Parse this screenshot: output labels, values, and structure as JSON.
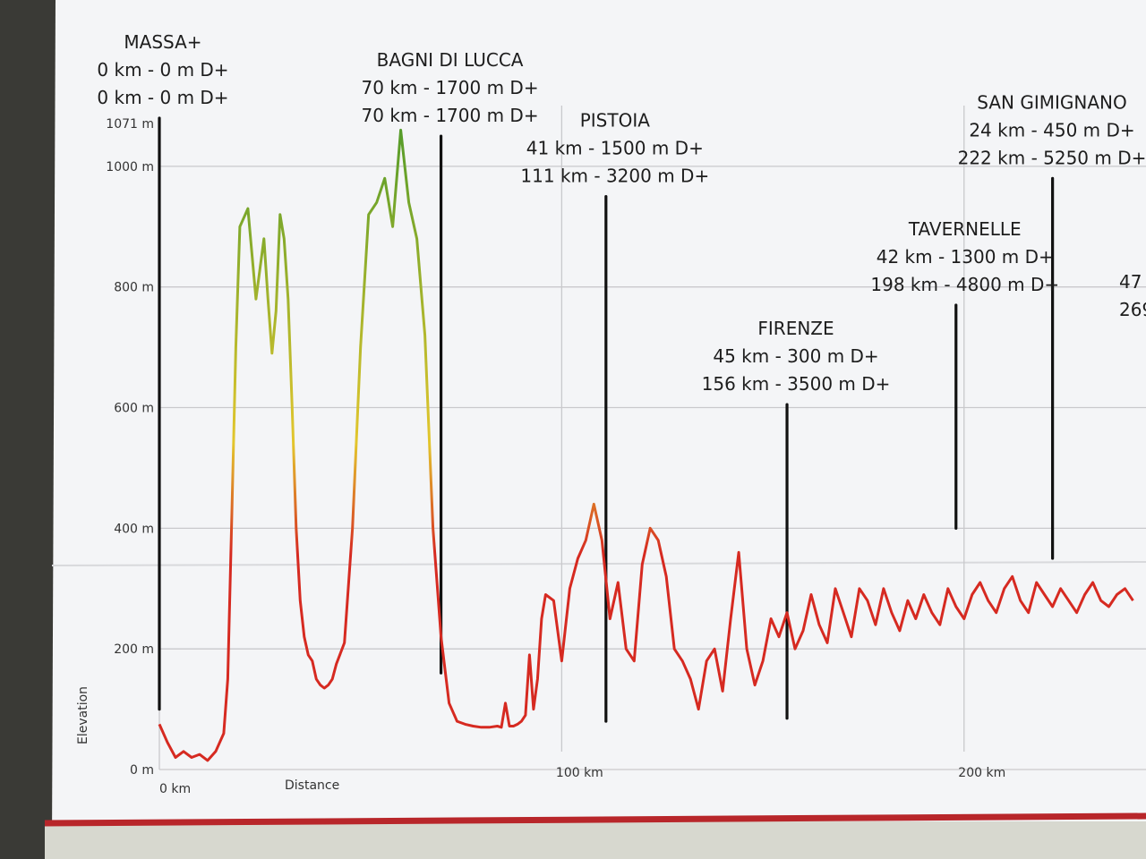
{
  "chart_data": {
    "type": "line",
    "title": "",
    "xlabel": "Distance",
    "ylabel": "Elevation",
    "xlim": [
      0,
      243
    ],
    "ylim": [
      0,
      1071
    ],
    "y_ticks": [
      {
        "value": 0,
        "label": "0 m"
      },
      {
        "value": 200,
        "label": "200 m"
      },
      {
        "value": 400,
        "label": "400 m"
      },
      {
        "value": 600,
        "label": "600 m"
      },
      {
        "value": 800,
        "label": "800 m"
      },
      {
        "value": 1000,
        "label": "1000 m"
      },
      {
        "value": 1071,
        "label": "1071 m"
      }
    ],
    "x_ticks": [
      {
        "value": 0,
        "label": "0 km"
      },
      {
        "value": 100,
        "label": "100 km"
      },
      {
        "value": 200,
        "label": "200 km"
      }
    ],
    "grid": true,
    "color_scale": {
      "low": "#d62a21",
      "mid": "#e3c62d",
      "high": "#4f9a2a"
    },
    "series": [
      {
        "x": [
          0,
          2,
          4,
          6,
          8,
          10,
          12,
          14,
          16,
          17,
          18,
          19,
          20,
          22,
          24,
          26,
          27,
          28,
          29,
          30,
          31,
          32,
          33,
          34,
          35,
          36,
          37,
          38,
          39,
          40,
          41,
          42,
          43,
          44,
          46,
          48,
          50,
          52,
          54,
          56,
          58,
          60,
          62,
          64,
          66,
          68,
          70,
          72,
          74,
          76,
          78,
          80,
          82,
          84,
          85,
          86,
          87,
          88,
          89,
          90,
          91,
          92,
          93,
          94,
          95,
          96,
          98,
          100,
          102,
          104,
          106,
          108,
          110,
          112,
          114,
          116,
          118,
          120,
          122,
          124,
          126,
          128,
          130,
          132,
          134,
          136,
          138,
          140,
          142,
          144,
          146,
          148,
          150,
          152,
          154,
          156,
          158,
          160,
          162,
          164,
          166,
          168,
          170,
          172,
          174,
          176,
          178,
          180,
          182,
          184,
          186,
          188,
          190,
          192,
          194,
          196,
          198,
          200,
          202,
          204,
          206,
          208,
          210,
          212,
          214,
          216,
          218,
          220,
          222,
          224,
          226,
          228,
          230,
          232,
          234,
          236,
          238,
          240,
          242
        ],
        "y": [
          75,
          45,
          20,
          30,
          20,
          25,
          15,
          30,
          60,
          150,
          420,
          700,
          900,
          930,
          780,
          880,
          780,
          690,
          760,
          920,
          880,
          780,
          600,
          400,
          280,
          220,
          190,
          180,
          150,
          140,
          135,
          140,
          150,
          175,
          210,
          400,
          700,
          920,
          940,
          980,
          900,
          1060,
          940,
          880,
          720,
          400,
          220,
          110,
          80,
          75,
          72,
          70,
          70,
          72,
          70,
          110,
          72,
          72,
          75,
          80,
          90,
          190,
          100,
          150,
          250,
          290,
          280,
          180,
          300,
          350,
          380,
          440,
          380,
          250,
          310,
          200,
          180,
          340,
          400,
          380,
          320,
          200,
          180,
          150,
          100,
          180,
          200,
          130,
          250,
          360,
          200,
          140,
          180,
          250,
          220,
          260,
          200,
          230,
          290,
          240,
          210,
          300,
          260,
          220,
          300,
          280,
          240,
          300,
          260,
          230,
          280,
          250,
          290,
          260,
          240,
          300,
          270,
          250,
          290,
          310,
          280,
          260,
          300,
          320,
          280,
          260,
          310,
          290,
          270,
          300,
          280,
          260,
          290,
          310,
          280,
          270,
          290,
          300,
          280
        ]
      }
    ],
    "annotations": [
      {
        "name": "MASSA+",
        "x": 0,
        "line_top": 1080,
        "line_bottom": 100,
        "leg": "0 km - 0 m D+",
        "total": "0 km - 0 m D+"
      },
      {
        "name": "BAGNI DI LUCCA",
        "x": 70,
        "line_top": 1050,
        "line_bottom": 160,
        "leg": "70 km - 1700 m D+",
        "total": "70 km - 1700 m D+"
      },
      {
        "name": "PISTOIA",
        "x": 111,
        "line_top": 950,
        "line_bottom": 80,
        "leg": "41 km - 1500 m D+",
        "total": "111 km - 3200 m D+"
      },
      {
        "name": "FIRENZE",
        "x": 156,
        "line_top": 605,
        "line_bottom": 85,
        "leg": "45 km - 300 m D+",
        "total": "156 km - 3500 m D+"
      },
      {
        "name": "TAVERNELLE",
        "x": 198,
        "line_top": 770,
        "line_bottom": 400,
        "leg": "42 km - 1300 m D+",
        "total": "198 km - 4800 m D+"
      },
      {
        "name": "SAN GIMIGNANO",
        "x": 222,
        "line_top": 980,
        "line_bottom": 350,
        "leg": "24 km - 450 m D+",
        "total": "222 km - 5250 m D+"
      }
    ],
    "partial_labels": [
      "47",
      "269"
    ]
  }
}
